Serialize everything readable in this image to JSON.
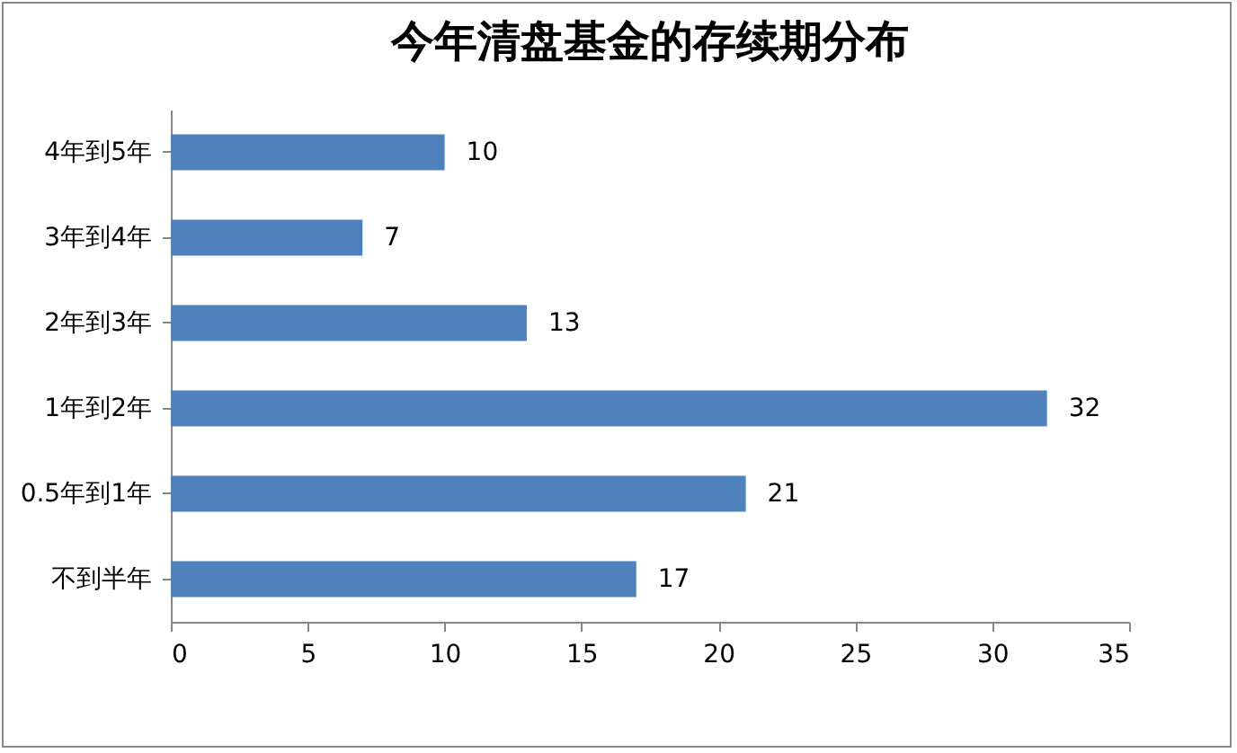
{
  "chart_data": {
    "type": "bar",
    "orientation": "horizontal",
    "title": "今年清盘基金的存续期分布",
    "categories": [
      "4年到5年",
      "3年到4年",
      "2年到3年",
      "1年到2年",
      "0.5年到1年",
      "不到半年"
    ],
    "values": [
      10,
      7,
      13,
      32,
      21,
      17
    ],
    "color": "#4f81bd",
    "xlim": [
      0,
      35
    ],
    "xticks": [
      0,
      5,
      10,
      15,
      20,
      25,
      30,
      35
    ],
    "grid": false,
    "data_labels": true
  }
}
